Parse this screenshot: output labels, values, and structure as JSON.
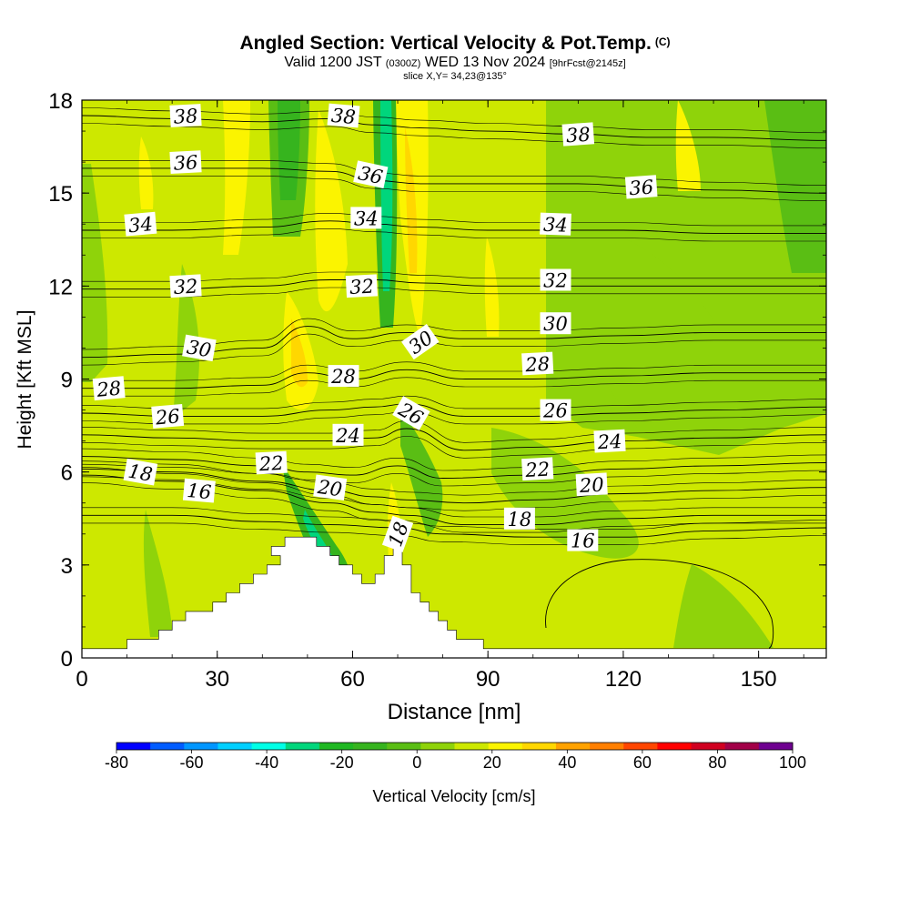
{
  "header": {
    "title": "Angled Section: Vertical Velocity & Pot.Temp.",
    "title_unit": "(C)",
    "valid_prefix": "Valid 1200 JST",
    "valid_utc": "(0300Z)",
    "valid_date": "WED 13 Nov 2024",
    "forecast": "[9hrFcst@2145z]",
    "slice": "slice X,Y= 34,23@135°"
  },
  "chart_data": {
    "type": "contour",
    "xlabel": "Distance [nm]",
    "ylabel": "Height [Kft MSL]",
    "xlim": [
      0,
      165
    ],
    "ylim": [
      0,
      18
    ],
    "xticks": [
      0,
      30,
      60,
      90,
      120,
      150
    ],
    "yticks": [
      0,
      3,
      6,
      9,
      12,
      15,
      18
    ],
    "terrain_kft": [
      [
        0,
        0.3
      ],
      [
        10,
        0.3
      ],
      [
        10,
        0.6
      ],
      [
        17,
        0.6
      ],
      [
        17,
        0.9
      ],
      [
        20,
        0.9
      ],
      [
        20,
        1.2
      ],
      [
        23,
        1.2
      ],
      [
        23,
        1.5
      ],
      [
        29,
        1.5
      ],
      [
        29,
        1.8
      ],
      [
        32,
        1.8
      ],
      [
        32,
        2.1
      ],
      [
        35,
        2.1
      ],
      [
        35,
        2.4
      ],
      [
        38,
        2.4
      ],
      [
        38,
        2.7
      ],
      [
        41,
        2.7
      ],
      [
        41,
        3.0
      ],
      [
        44,
        3.0
      ],
      [
        44,
        3.3
      ],
      [
        42,
        3.3
      ],
      [
        42,
        3.6
      ],
      [
        45,
        3.6
      ],
      [
        45,
        3.9
      ],
      [
        52,
        3.9
      ],
      [
        52,
        3.6
      ],
      [
        55,
        3.6
      ],
      [
        55,
        3.3
      ],
      [
        57,
        3.3
      ],
      [
        57,
        3.0
      ],
      [
        60,
        3.0
      ],
      [
        60,
        2.7
      ],
      [
        62,
        2.7
      ],
      [
        62,
        2.4
      ],
      [
        65,
        2.4
      ],
      [
        65,
        2.7
      ],
      [
        67,
        2.7
      ],
      [
        67,
        3.3
      ],
      [
        69,
        3.3
      ],
      [
        69,
        3.6
      ],
      [
        71,
        3.6
      ],
      [
        71,
        3.0
      ],
      [
        73,
        3.0
      ],
      [
        73,
        2.1
      ],
      [
        75,
        2.1
      ],
      [
        75,
        1.8
      ],
      [
        77,
        1.8
      ],
      [
        77,
        1.5
      ],
      [
        79,
        1.5
      ],
      [
        79,
        1.2
      ],
      [
        81,
        1.2
      ],
      [
        81,
        0.9
      ],
      [
        83,
        0.9
      ],
      [
        83,
        0.6
      ],
      [
        89,
        0.6
      ],
      [
        89,
        0.3
      ],
      [
        165,
        0.3
      ]
    ],
    "colorbar": {
      "label": "Vertical Velocity [cm/s]",
      "ticks": [
        -80,
        -60,
        -40,
        -20,
        0,
        20,
        40,
        60,
        80,
        100
      ],
      "colors": [
        "#0000ff",
        "#005cff",
        "#0096ff",
        "#00d0ff",
        "#00ffe6",
        "#00d67c",
        "#1fb822",
        "#36b41e",
        "#5abe14",
        "#8fd30a",
        "#cde800",
        "#fbf400",
        "#ffd700",
        "#ffa200",
        "#ff7f00",
        "#ff4600",
        "#ff0000",
        "#d00020",
        "#a20048",
        "#6e0090"
      ]
    },
    "isentropes": [
      {
        "value": 16,
        "label": "16",
        "points": [
          [
            0,
            4.6
          ],
          [
            20,
            4.6
          ],
          [
            40,
            4.4
          ],
          [
            55,
            4.3
          ],
          [
            70,
            4.2
          ],
          [
            80,
            4.0
          ],
          [
            100,
            3.9
          ],
          [
            120,
            3.9
          ],
          [
            140,
            4.1
          ],
          [
            165,
            4.2
          ]
        ]
      },
      {
        "value": 18,
        "label": "18",
        "points": [
          [
            0,
            5.9
          ],
          [
            20,
            5.7
          ],
          [
            40,
            5.4
          ],
          [
            55,
            5.0
          ],
          [
            65,
            4.7
          ],
          [
            72,
            4.6
          ],
          [
            85,
            4.3
          ],
          [
            100,
            4.3
          ],
          [
            120,
            4.5
          ],
          [
            140,
            4.6
          ],
          [
            165,
            4.6
          ]
        ]
      },
      {
        "value": 20,
        "label": "20",
        "points": [
          [
            0,
            6.1
          ],
          [
            20,
            6.0
          ],
          [
            40,
            5.7
          ],
          [
            55,
            5.4
          ],
          [
            65,
            5.2
          ],
          [
            72,
            5.1
          ],
          [
            85,
            5.0
          ],
          [
            100,
            5.1
          ],
          [
            120,
            5.3
          ],
          [
            140,
            5.4
          ],
          [
            165,
            5.5
          ]
        ]
      },
      {
        "value": 22,
        "label": "22",
        "points": [
          [
            0,
            6.5
          ],
          [
            20,
            6.4
          ],
          [
            40,
            6.2
          ],
          [
            50,
            6.0
          ],
          [
            60,
            5.9
          ],
          [
            70,
            6.2
          ],
          [
            80,
            5.8
          ],
          [
            100,
            5.9
          ],
          [
            120,
            6.1
          ],
          [
            140,
            6.2
          ],
          [
            165,
            6.3
          ]
        ]
      },
      {
        "value": 24,
        "label": "24",
        "points": [
          [
            0,
            7.2
          ],
          [
            20,
            7.1
          ],
          [
            40,
            7.0
          ],
          [
            55,
            7.0
          ],
          [
            65,
            7.1
          ],
          [
            72,
            7.4
          ],
          [
            85,
            6.7
          ],
          [
            100,
            6.8
          ],
          [
            120,
            7.0
          ],
          [
            140,
            7.1
          ],
          [
            165,
            7.2
          ]
        ]
      },
      {
        "value": 26,
        "label": "26",
        "points": [
          [
            0,
            7.9
          ],
          [
            20,
            7.8
          ],
          [
            40,
            7.8
          ],
          [
            55,
            8.0
          ],
          [
            65,
            8.1
          ],
          [
            72,
            8.2
          ],
          [
            85,
            7.8
          ],
          [
            100,
            7.8
          ],
          [
            120,
            7.9
          ],
          [
            140,
            8.0
          ],
          [
            165,
            8.1
          ]
        ]
      },
      {
        "value": 28,
        "label": "28",
        "points": [
          [
            0,
            8.7
          ],
          [
            20,
            8.7
          ],
          [
            40,
            8.8
          ],
          [
            50,
            9.2
          ],
          [
            60,
            9.0
          ],
          [
            72,
            9.3
          ],
          [
            85,
            9.0
          ],
          [
            100,
            9.0
          ],
          [
            120,
            9.1
          ],
          [
            140,
            9.2
          ],
          [
            165,
            9.2
          ]
        ]
      },
      {
        "value": 30,
        "label": "30",
        "points": [
          [
            0,
            9.7
          ],
          [
            20,
            9.8
          ],
          [
            40,
            10.0
          ],
          [
            50,
            10.7
          ],
          [
            60,
            10.3
          ],
          [
            72,
            10.5
          ],
          [
            85,
            10.3
          ],
          [
            100,
            10.3
          ],
          [
            120,
            10.4
          ],
          [
            140,
            10.5
          ],
          [
            165,
            10.5
          ]
        ]
      },
      {
        "value": 32,
        "label": "32",
        "points": [
          [
            0,
            11.9
          ],
          [
            20,
            11.9
          ],
          [
            40,
            12.0
          ],
          [
            55,
            12.2
          ],
          [
            65,
            12.2
          ],
          [
            75,
            12.1
          ],
          [
            90,
            12.0
          ],
          [
            105,
            12.0
          ],
          [
            120,
            12.0
          ],
          [
            140,
            12.0
          ],
          [
            165,
            12.0
          ]
        ]
      },
      {
        "value": 34,
        "label": "34",
        "points": [
          [
            0,
            13.8
          ],
          [
            20,
            13.8
          ],
          [
            40,
            13.9
          ],
          [
            55,
            14.1
          ],
          [
            65,
            14.0
          ],
          [
            75,
            13.9
          ],
          [
            90,
            13.8
          ],
          [
            105,
            13.8
          ],
          [
            120,
            13.8
          ],
          [
            140,
            13.7
          ],
          [
            165,
            13.7
          ]
        ]
      },
      {
        "value": 36,
        "label": "36",
        "points": [
          [
            0,
            15.8
          ],
          [
            20,
            15.8
          ],
          [
            40,
            15.8
          ],
          [
            55,
            15.7
          ],
          [
            65,
            15.4
          ],
          [
            75,
            15.3
          ],
          [
            90,
            15.3
          ],
          [
            110,
            15.3
          ],
          [
            125,
            15.2
          ],
          [
            140,
            15.1
          ],
          [
            165,
            15.0
          ]
        ]
      },
      {
        "value": 38,
        "label": "38",
        "points": [
          [
            0,
            17.5
          ],
          [
            20,
            17.4
          ],
          [
            40,
            17.3
          ],
          [
            55,
            17.4
          ],
          [
            65,
            17.2
          ],
          [
            75,
            17.1
          ],
          [
            90,
            17.0
          ],
          [
            110,
            16.9
          ],
          [
            125,
            16.8
          ],
          [
            140,
            16.8
          ],
          [
            165,
            16.7
          ]
        ]
      }
    ],
    "contour_labels": [
      {
        "text": "38",
        "x": 23,
        "y": 17.5,
        "angle": -3
      },
      {
        "text": "38",
        "x": 58,
        "y": 17.5,
        "angle": 5
      },
      {
        "text": "38",
        "x": 110,
        "y": 16.9,
        "angle": -4
      },
      {
        "text": "36",
        "x": 23,
        "y": 16.0,
        "angle": -3
      },
      {
        "text": "36",
        "x": 64,
        "y": 15.6,
        "angle": 12
      },
      {
        "text": "36",
        "x": 124,
        "y": 15.2,
        "angle": -4
      },
      {
        "text": "34",
        "x": 13,
        "y": 14.0,
        "angle": -5
      },
      {
        "text": "34",
        "x": 63,
        "y": 14.2,
        "angle": 0
      },
      {
        "text": "34",
        "x": 105,
        "y": 14.0,
        "angle": 2
      },
      {
        "text": "32",
        "x": 23,
        "y": 12.0,
        "angle": -3
      },
      {
        "text": "32",
        "x": 62,
        "y": 12.0,
        "angle": -3
      },
      {
        "text": "32",
        "x": 105,
        "y": 12.2,
        "angle": 0
      },
      {
        "text": "30",
        "x": 26,
        "y": 10.0,
        "angle": 10
      },
      {
        "text": "30",
        "x": 75,
        "y": 10.2,
        "angle": -35
      },
      {
        "text": "30",
        "x": 105,
        "y": 10.8,
        "angle": 0
      },
      {
        "text": "28",
        "x": 6,
        "y": 8.7,
        "angle": -5
      },
      {
        "text": "28",
        "x": 58,
        "y": 9.1,
        "angle": 0
      },
      {
        "text": "28",
        "x": 101,
        "y": 9.5,
        "angle": -3
      },
      {
        "text": "26",
        "x": 19,
        "y": 7.8,
        "angle": -5
      },
      {
        "text": "26",
        "x": 73,
        "y": 7.9,
        "angle": 30
      },
      {
        "text": "26",
        "x": 105,
        "y": 8.0,
        "angle": 0
      },
      {
        "text": "24",
        "x": 59,
        "y": 7.2,
        "angle": 0
      },
      {
        "text": "24",
        "x": 117,
        "y": 7.0,
        "angle": -3
      },
      {
        "text": "22",
        "x": 42,
        "y": 6.3,
        "angle": -3
      },
      {
        "text": "22",
        "x": 101,
        "y": 6.1,
        "angle": -3
      },
      {
        "text": "20",
        "x": 55,
        "y": 5.5,
        "angle": 8
      },
      {
        "text": "20",
        "x": 113,
        "y": 5.6,
        "angle": -3
      },
      {
        "text": "18",
        "x": 13,
        "y": 6.0,
        "angle": 10
      },
      {
        "text": "18",
        "x": 70,
        "y": 4.0,
        "angle": -70
      },
      {
        "text": "18",
        "x": 97,
        "y": 4.5,
        "angle": 0
      },
      {
        "text": "16",
        "x": 26,
        "y": 5.4,
        "angle": 5
      },
      {
        "text": "16",
        "x": 111,
        "y": 3.8,
        "angle": 0
      }
    ]
  }
}
